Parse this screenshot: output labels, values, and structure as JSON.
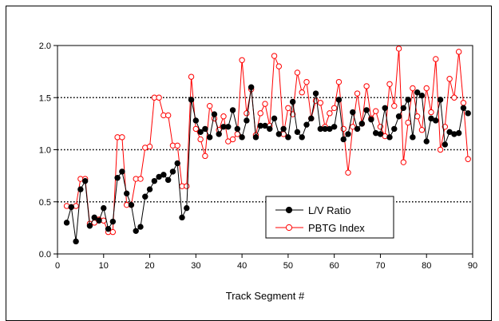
{
  "chart_data": {
    "type": "line",
    "xlabel": "Track Segment #",
    "ylabel": "",
    "xlim": [
      0,
      90
    ],
    "ylim": [
      0.0,
      2.0
    ],
    "xticks": [
      "0",
      "10",
      "20",
      "30",
      "40",
      "50",
      "60",
      "70",
      "80",
      "90"
    ],
    "yticks": [
      "0.0",
      "0.5",
      "1.0",
      "1.5",
      "2.0"
    ],
    "grid": "dotted horizontal at 0.5, 1.0, 1.5",
    "legend": "lower-center",
    "x": [
      2,
      3,
      4,
      5,
      6,
      7,
      8,
      9,
      10,
      11,
      12,
      13,
      14,
      15,
      16,
      17,
      18,
      19,
      20,
      21,
      22,
      23,
      24,
      25,
      26,
      27,
      28,
      29,
      30,
      31,
      32,
      33,
      34,
      35,
      36,
      37,
      38,
      39,
      40,
      41,
      42,
      43,
      44,
      45,
      46,
      47,
      48,
      49,
      50,
      51,
      52,
      53,
      54,
      55,
      56,
      57,
      58,
      59,
      60,
      61,
      62,
      63,
      64,
      65,
      66,
      67,
      68,
      69,
      70,
      71,
      72,
      73,
      74,
      75,
      76,
      77,
      78,
      79,
      80,
      81,
      82,
      83,
      84,
      85,
      86,
      87,
      88,
      89
    ],
    "series": [
      {
        "name": "L/V Ratio",
        "color": "#000000",
        "marker": "filled-circle",
        "values": [
          0.3,
          0.45,
          0.12,
          0.62,
          0.7,
          0.27,
          0.35,
          0.32,
          0.44,
          0.24,
          0.31,
          0.73,
          0.79,
          0.58,
          0.47,
          0.22,
          0.26,
          0.55,
          0.62,
          0.7,
          0.74,
          0.76,
          0.71,
          0.79,
          0.87,
          0.35,
          0.44,
          1.48,
          1.28,
          1.17,
          1.2,
          1.12,
          1.34,
          1.15,
          1.22,
          1.22,
          1.38,
          1.2,
          1.12,
          1.28,
          1.6,
          1.12,
          1.23,
          1.23,
          1.2,
          1.3,
          1.15,
          1.2,
          1.12,
          1.46,
          1.17,
          1.12,
          1.24,
          1.3,
          1.54,
          1.2,
          1.2,
          1.2,
          1.22,
          1.48,
          1.1,
          1.15,
          1.36,
          1.2,
          1.25,
          1.38,
          1.29,
          1.16,
          1.15,
          1.4,
          1.12,
          1.2,
          1.32,
          1.4,
          1.48,
          1.12,
          1.55,
          1.52,
          1.08,
          1.3,
          1.28,
          1.48,
          1.05,
          1.17,
          1.15,
          1.16,
          1.4,
          1.35
        ]
      },
      {
        "name": "PBTG Index",
        "color": "#ff0000",
        "marker": "open-circle",
        "values": [
          0.46,
          0.45,
          0.46,
          0.72,
          0.72,
          0.29,
          0.3,
          0.33,
          0.32,
          0.21,
          0.21,
          1.12,
          1.12,
          0.47,
          0.47,
          0.72,
          0.72,
          1.02,
          1.03,
          1.5,
          1.5,
          1.33,
          1.33,
          1.04,
          1.04,
          0.65,
          0.65,
          1.7,
          1.2,
          1.1,
          0.94,
          1.42,
          1.3,
          1.19,
          1.32,
          1.08,
          1.1,
          1.15,
          1.86,
          1.35,
          1.58,
          1.14,
          1.35,
          1.44,
          1.23,
          1.9,
          1.8,
          1.15,
          1.4,
          1.34,
          1.74,
          1.55,
          1.65,
          1.3,
          1.47,
          1.45,
          1.22,
          1.35,
          1.4,
          1.65,
          1.2,
          0.78,
          1.22,
          1.54,
          1.25,
          1.61,
          1.3,
          1.37,
          1.22,
          1.13,
          1.63,
          1.42,
          1.97,
          0.88,
          1.26,
          1.59,
          1.32,
          1.19,
          1.59,
          1.36,
          1.87,
          1.0,
          1.22,
          1.68,
          1.5,
          1.94,
          1.45,
          0.91
        ]
      }
    ]
  }
}
